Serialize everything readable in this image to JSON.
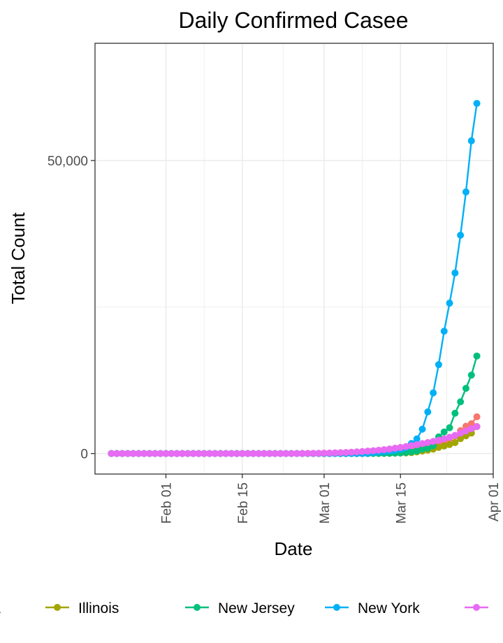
{
  "chart_data": {
    "type": "line",
    "title": "Daily Confirmed Casee",
    "xlabel": "Date",
    "ylabel": "Total Count",
    "x_start": "2020-01-22",
    "x_end": "2020-03-29",
    "xlim": [
      "2020-01-19",
      "2020-04-01"
    ],
    "ylim": [
      -3500,
      70000
    ],
    "x_ticks": [
      {
        "date": "2020-02-01",
        "label": "Feb 01"
      },
      {
        "date": "2020-02-15",
        "label": "Feb 15"
      },
      {
        "date": "2020-03-01",
        "label": "Mar 01"
      },
      {
        "date": "2020-03-15",
        "label": "Mar 15"
      },
      {
        "date": "2020-04-01",
        "label": "Apr 01"
      }
    ],
    "y_ticks": [
      {
        "value": 0,
        "label": "0"
      },
      {
        "value": 50000,
        "label": "50,000"
      }
    ],
    "grid": true,
    "legend_position": "bottom",
    "series": [
      {
        "name": "California",
        "color": "#F8766D",
        "tail_dates": [
          "2020-03-10",
          "2020-03-11",
          "2020-03-12",
          "2020-03-13",
          "2020-03-14",
          "2020-03-15",
          "2020-03-16",
          "2020-03-17",
          "2020-03-18",
          "2020-03-19",
          "2020-03-20",
          "2020-03-21",
          "2020-03-22",
          "2020-03-23",
          "2020-03-24",
          "2020-03-25",
          "2020-03-26",
          "2020-03-27",
          "2020-03-28",
          "2020-03-29"
        ],
        "tail_values": [
          144,
          177,
          221,
          282,
          340,
          426,
          557,
          698,
          751,
          952,
          1177,
          1364,
          1642,
          2108,
          2538,
          2998,
          3899,
          4657,
          5095,
          6266
        ]
      },
      {
        "name": "Illinois",
        "color": "#A3A500",
        "tail_dates": [
          "2020-03-10",
          "2020-03-11",
          "2020-03-12",
          "2020-03-13",
          "2020-03-14",
          "2020-03-15",
          "2020-03-16",
          "2020-03-17",
          "2020-03-18",
          "2020-03-19",
          "2020-03-20",
          "2020-03-21",
          "2020-03-22",
          "2020-03-23",
          "2020-03-24",
          "2020-03-25",
          "2020-03-26",
          "2020-03-27",
          "2020-03-28",
          "2020-03-29"
        ],
        "tail_values": [
          12,
          25,
          32,
          46,
          64,
          93,
          105,
          160,
          288,
          422,
          585,
          753,
          1049,
          1285,
          1535,
          1865,
          2538,
          3026,
          3491,
          4596
        ]
      },
      {
        "name": "New Jersey",
        "color": "#00BF7D",
        "tail_dates": [
          "2020-03-10",
          "2020-03-11",
          "2020-03-12",
          "2020-03-13",
          "2020-03-14",
          "2020-03-15",
          "2020-03-16",
          "2020-03-17",
          "2020-03-18",
          "2020-03-19",
          "2020-03-20",
          "2020-03-21",
          "2020-03-22",
          "2020-03-23",
          "2020-03-24",
          "2020-03-25",
          "2020-03-26",
          "2020-03-27",
          "2020-03-28",
          "2020-03-29"
        ],
        "tail_values": [
          15,
          23,
          29,
          50,
          69,
          98,
          178,
          267,
          427,
          742,
          890,
          1327,
          2844,
          3675,
          4402,
          6876,
          8825,
          11124,
          13386,
          16636
        ]
      },
      {
        "name": "New York",
        "color": "#00B0F6",
        "tail_dates": [
          "2020-03-10",
          "2020-03-11",
          "2020-03-12",
          "2020-03-13",
          "2020-03-14",
          "2020-03-15",
          "2020-03-16",
          "2020-03-17",
          "2020-03-18",
          "2020-03-19",
          "2020-03-20",
          "2020-03-21",
          "2020-03-22",
          "2020-03-23",
          "2020-03-24",
          "2020-03-25",
          "2020-03-26",
          "2020-03-27",
          "2020-03-28",
          "2020-03-29"
        ],
        "tail_values": [
          173,
          220,
          328,
          421,
          525,
          732,
          967,
          1706,
          2495,
          4152,
          7102,
          10356,
          15168,
          20875,
          25665,
          30811,
          37258,
          44635,
          53363,
          59746
        ]
      },
      {
        "color": "#E76BF3",
        "tail_dates": [
          "2020-02-25",
          "2020-02-26",
          "2020-02-27",
          "2020-02-28",
          "2020-02-29",
          "2020-03-01",
          "2020-03-02",
          "2020-03-03",
          "2020-03-04",
          "2020-03-05",
          "2020-03-06",
          "2020-03-07",
          "2020-03-08",
          "2020-03-09",
          "2020-03-10",
          "2020-03-11",
          "2020-03-12",
          "2020-03-13",
          "2020-03-14",
          "2020-03-15",
          "2020-03-16",
          "2020-03-17",
          "2020-03-18",
          "2020-03-19",
          "2020-03-20",
          "2020-03-21",
          "2020-03-22",
          "2020-03-23",
          "2020-03-24",
          "2020-03-25",
          "2020-03-26",
          "2020-03-27",
          "2020-03-28",
          "2020-03-29"
        ],
        "tail_values": [
          5,
          15,
          25,
          35,
          50,
          70,
          90,
          115,
          145,
          180,
          225,
          280,
          340,
          410,
          480,
          560,
          660,
          770,
          900,
          1040,
          1190,
          1350,
          1520,
          1700,
          1880,
          2070,
          2270,
          2500,
          2780,
          3100,
          3480,
          3850,
          4250,
          4600
        ]
      }
    ]
  }
}
